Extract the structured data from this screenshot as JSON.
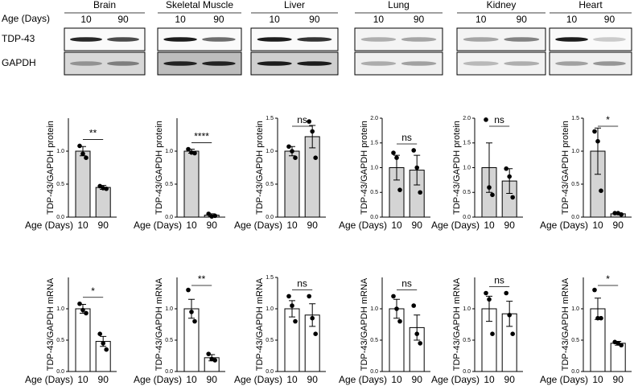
{
  "blots": {
    "age_label": "Age (Days)",
    "row_labels": [
      "TDP-43",
      "GAPDH"
    ],
    "tissues": [
      {
        "name": "Brain",
        "ages": [
          "10",
          "90"
        ]
      },
      {
        "name": "Skeletal Muscle",
        "ages": [
          "10",
          "90"
        ]
      },
      {
        "name": "Liver",
        "ages": [
          "10",
          "90"
        ]
      },
      {
        "name": "Lung",
        "ages": [
          "10",
          "90"
        ]
      },
      {
        "name": "Kidney",
        "ages": [
          "10",
          "90"
        ]
      },
      {
        "name": "Heart",
        "ages": [
          "10",
          "90"
        ]
      }
    ]
  },
  "chart_data": [
    {
      "type": "bar",
      "ylabel": "TDP-43/GAPDH protein",
      "xlabel": "Age (Days)",
      "categories": [
        "10",
        "90"
      ],
      "values": [
        1.0,
        0.45
      ],
      "errors": [
        0.07,
        0.03
      ],
      "points": [
        [
          1.08,
          0.96,
          0.9
        ],
        [
          0.47,
          0.44,
          0.43
        ]
      ],
      "significance": "**",
      "color": "#d4d4d4",
      "ylim": [
        0,
        1.5
      ],
      "yticks": [
        {
          "value": 0,
          "label": "0.0"
        },
        {
          "value": 0.5,
          "label": "0.5"
        },
        {
          "value": 1,
          "label": "1.0"
        }
      ]
    },
    {
      "type": "bar",
      "ylabel": "TDP-43/GAPDH protein",
      "xlabel": "Age (Days)",
      "categories": [
        "10",
        "90"
      ],
      "values": [
        1.0,
        0.03
      ],
      "errors": [
        0.03,
        0.02
      ],
      "points": [
        [
          1.03,
          0.98,
          0.97
        ],
        [
          0.05,
          0.01,
          0.02
        ]
      ],
      "significance": "****",
      "color": "#d4d4d4",
      "ylim": [
        0,
        1.5
      ],
      "yticks": [
        {
          "value": 0,
          "label": "0.0"
        },
        {
          "value": 0.5,
          "label": "0.5"
        },
        {
          "value": 1,
          "label": "1.0"
        }
      ]
    },
    {
      "type": "bar",
      "ylabel": "TDP-43/GAPDH protein",
      "xlabel": "Age (Days)",
      "categories": [
        "10",
        "90"
      ],
      "values": [
        1.0,
        1.22
      ],
      "errors": [
        0.07,
        0.17
      ],
      "points": [
        [
          1.07,
          1.0,
          0.9
        ],
        [
          1.45,
          1.3,
          0.9
        ]
      ],
      "significance": "ns",
      "color": "#d4d4d4",
      "ylim": [
        0,
        1.5
      ],
      "yticks": [
        {
          "value": 0,
          "label": "0.0"
        },
        {
          "value": 0.5,
          "label": "0.5"
        },
        {
          "value": 1,
          "label": "1.0"
        },
        {
          "value": 1.5,
          "label": "1.5"
        }
      ]
    },
    {
      "type": "bar",
      "ylabel": "TDP-43/GAPDH protein",
      "xlabel": "Age (Days)",
      "categories": [
        "10",
        "90"
      ],
      "values": [
        1.0,
        0.95
      ],
      "errors": [
        0.25,
        0.3
      ],
      "points": [
        [
          1.3,
          1.2,
          0.55
        ],
        [
          1.35,
          1.0,
          0.5
        ]
      ],
      "significance": "ns",
      "color": "#d4d4d4",
      "ylim": [
        0,
        2
      ],
      "yticks": [
        {
          "value": 0,
          "label": "0.0"
        },
        {
          "value": 0.5,
          "label": "0.5"
        },
        {
          "value": 1,
          "label": "1.0"
        },
        {
          "value": 1.5,
          "label": "1.5"
        },
        {
          "value": 2,
          "label": "2.0"
        }
      ]
    },
    {
      "type": "bar",
      "ylabel": "TDP-43/GAPDH protein",
      "xlabel": "Age (Days)",
      "categories": [
        "10",
        "90"
      ],
      "values": [
        1.0,
        0.73
      ],
      "errors": [
        0.5,
        0.25
      ],
      "points": [
        [
          1.97,
          0.6,
          0.45
        ],
        [
          0.98,
          0.82,
          0.4
        ]
      ],
      "significance": "ns",
      "color": "#d4d4d4",
      "ylim": [
        0,
        2
      ],
      "yticks": [
        {
          "value": 0,
          "label": "0.0"
        },
        {
          "value": 0.5,
          "label": "0.5"
        },
        {
          "value": 1,
          "label": "1.0"
        },
        {
          "value": 1.5,
          "label": "1.5"
        },
        {
          "value": 2,
          "label": "2.0"
        }
      ]
    },
    {
      "type": "bar",
      "ylabel": "TDP-43/GAPDH protein",
      "xlabel": "Age (Days)",
      "categories": [
        "10",
        "90"
      ],
      "values": [
        1.0,
        0.05
      ],
      "errors": [
        0.35,
        0.01
      ],
      "points": [
        [
          1.3,
          1.15,
          0.4
        ],
        [
          0.06,
          0.06,
          0.04
        ]
      ],
      "significance": "*",
      "color": "#d4d4d4",
      "ylim": [
        0,
        1.5
      ],
      "yticks": [
        {
          "value": 0,
          "label": "0.0"
        },
        {
          "value": 0.5,
          "label": "0.5"
        },
        {
          "value": 1,
          "label": "1.0"
        },
        {
          "value": 1.5,
          "label": "1.5"
        }
      ]
    },
    {
      "type": "bar",
      "ylabel": "TDP-43/GAPDH mRNA",
      "xlabel": "Age (Days)",
      "categories": [
        "10",
        "90"
      ],
      "values": [
        1.0,
        0.48
      ],
      "errors": [
        0.07,
        0.08
      ],
      "points": [
        [
          1.08,
          0.98,
          0.93
        ],
        [
          0.6,
          0.45,
          0.35
        ]
      ],
      "significance": "*",
      "color": "#ffffff",
      "ylim": [
        0,
        1.5
      ],
      "yticks": [
        {
          "value": 0,
          "label": "0.0"
        },
        {
          "value": 0.5,
          "label": "0.5"
        },
        {
          "value": 1,
          "label": "1.0"
        }
      ]
    },
    {
      "type": "bar",
      "ylabel": "TDP-43/GAPDH mRNA",
      "xlabel": "Age (Days)",
      "categories": [
        "10",
        "90"
      ],
      "values": [
        1.0,
        0.22
      ],
      "errors": [
        0.15,
        0.05
      ],
      "points": [
        [
          1.3,
          0.95,
          0.8
        ],
        [
          0.28,
          0.2,
          0.18
        ]
      ],
      "significance": "**",
      "color": "#ffffff",
      "ylim": [
        0,
        1.5
      ],
      "yticks": [
        {
          "value": 0,
          "label": "0.0"
        },
        {
          "value": 0.5,
          "label": "0.5"
        },
        {
          "value": 1,
          "label": "1.0"
        }
      ]
    },
    {
      "type": "bar",
      "ylabel": "TDP-43/GAPDH mRNA",
      "xlabel": "Age (Days)",
      "categories": [
        "10",
        "90"
      ],
      "values": [
        1.0,
        0.9
      ],
      "errors": [
        0.13,
        0.18
      ],
      "points": [
        [
          1.2,
          1.05,
          0.8
        ],
        [
          1.2,
          0.85,
          0.6
        ]
      ],
      "significance": "ns",
      "color": "#ffffff",
      "ylim": [
        0,
        1.5
      ],
      "yticks": [
        {
          "value": 0,
          "label": "0.0"
        },
        {
          "value": 0.5,
          "label": "0.5"
        },
        {
          "value": 1,
          "label": "1.0"
        },
        {
          "value": 1.5,
          "label": "1.5"
        }
      ]
    },
    {
      "type": "bar",
      "ylabel": "TDP-43/GAPDH mRNA",
      "xlabel": "Age (Days)",
      "categories": [
        "10",
        "90"
      ],
      "values": [
        1.0,
        0.7
      ],
      "errors": [
        0.15,
        0.2
      ],
      "points": [
        [
          1.2,
          1.0,
          0.8
        ],
        [
          1.05,
          0.6,
          0.45
        ]
      ],
      "significance": "ns",
      "color": "#ffffff",
      "ylim": [
        0,
        1.5
      ],
      "yticks": [
        {
          "value": 0,
          "label": "0.0"
        },
        {
          "value": 0.5,
          "label": "0.5"
        },
        {
          "value": 1,
          "label": "1.0"
        }
      ]
    },
    {
      "type": "bar",
      "ylabel": "TDP-43/GAPDH mRNA",
      "xlabel": "Age (Days)",
      "categories": [
        "10",
        "90"
      ],
      "values": [
        1.0,
        0.92
      ],
      "errors": [
        0.2,
        0.2
      ],
      "points": [
        [
          1.25,
          1.15,
          0.6
        ],
        [
          1.25,
          0.9,
          0.6
        ]
      ],
      "significance": "ns",
      "color": "#ffffff",
      "ylim": [
        0,
        1.5
      ],
      "yticks": [
        {
          "value": 0,
          "label": "0.0"
        },
        {
          "value": 0.5,
          "label": "0.5"
        },
        {
          "value": 1,
          "label": "1.0"
        }
      ]
    },
    {
      "type": "bar",
      "ylabel": "TDP-43/GAPDH mRNA",
      "xlabel": "Age (Days)",
      "categories": [
        "10",
        "90"
      ],
      "values": [
        1.0,
        0.45
      ],
      "errors": [
        0.17,
        0.03
      ],
      "points": [
        [
          1.3,
          0.85,
          0.85
        ],
        [
          0.47,
          0.45,
          0.42
        ]
      ],
      "significance": "*",
      "color": "#ffffff",
      "ylim": [
        0,
        1.5
      ],
      "yticks": [
        {
          "value": 0,
          "label": "0.0"
        },
        {
          "value": 0.5,
          "label": "0.5"
        },
        {
          "value": 1,
          "label": "1.0"
        }
      ]
    }
  ]
}
